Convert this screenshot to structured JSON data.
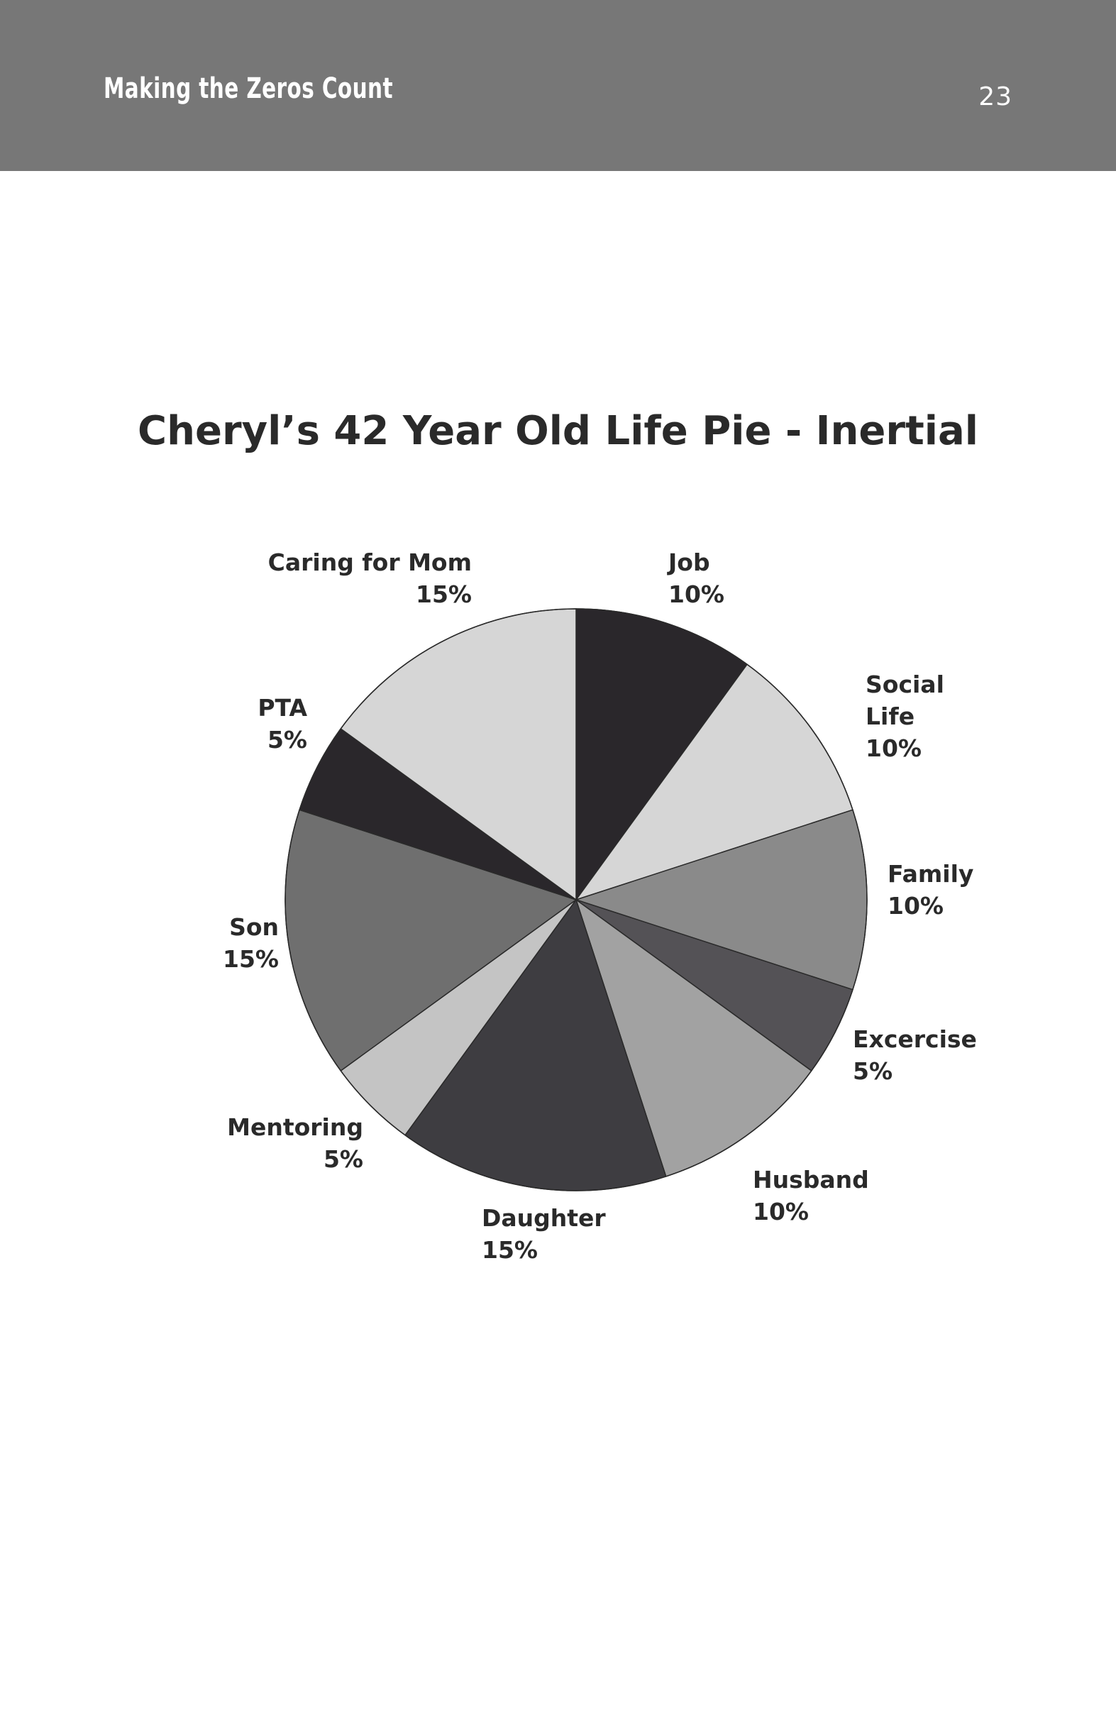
{
  "header": {
    "title": "Making the Zeros Count",
    "page_number": "23"
  },
  "chart_data": {
    "type": "pie",
    "title": "Cheryl’s 42 Year Old Life Pie - Inertial",
    "slices": [
      {
        "name": "Job",
        "value": 10,
        "label": "10%",
        "color": "#2a272b"
      },
      {
        "name": "Social Life",
        "value": 10,
        "label": "10%",
        "color": "#d6d6d6"
      },
      {
        "name": "Family",
        "value": 10,
        "label": "10%",
        "color": "#8a8a8a"
      },
      {
        "name": "Excercise",
        "value": 5,
        "label": "5%",
        "color": "#545256"
      },
      {
        "name": "Husband",
        "value": 10,
        "label": "10%",
        "color": "#a2a2a2"
      },
      {
        "name": "Daughter",
        "value": 15,
        "label": "15%",
        "color": "#3e3d41"
      },
      {
        "name": "Mentoring",
        "value": 5,
        "label": "5%",
        "color": "#c4c4c4"
      },
      {
        "name": "Son",
        "value": 15,
        "label": "15%",
        "color": "#6f6f6f"
      },
      {
        "name": "PTA",
        "value": 5,
        "label": "5%",
        "color": "#2a272b"
      },
      {
        "name": "Caring for Mom",
        "value": 15,
        "label": "15%",
        "color": "#d6d6d6"
      }
    ],
    "start_angle_deg": 0,
    "direction": "clockwise"
  }
}
